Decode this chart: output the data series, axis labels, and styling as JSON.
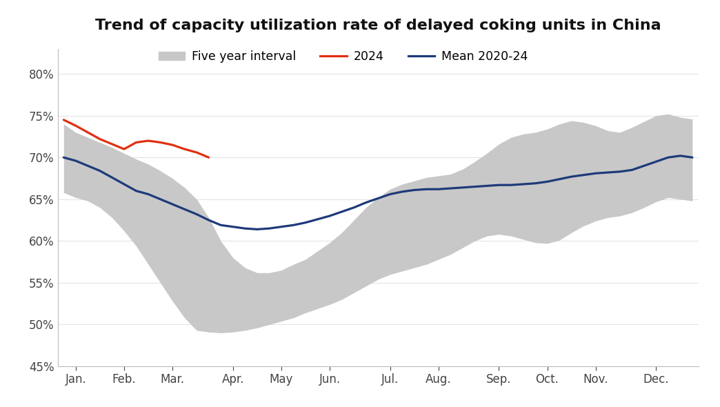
{
  "title": "Trend of capacity utilization rate of delayed coking units in China",
  "title_fontsize": 16,
  "title_fontweight": "bold",
  "background_color": "#ffffff",
  "ylim": [
    0.45,
    0.83
  ],
  "yticks": [
    0.45,
    0.5,
    0.55,
    0.6,
    0.65,
    0.7,
    0.75,
    0.8
  ],
  "ytick_labels": [
    "45%",
    "50%",
    "55%",
    "60%",
    "65%",
    "70%",
    "75%",
    "80%"
  ],
  "x_labels": [
    "Jan.",
    "Feb.",
    "Mar.",
    "Apr.",
    "May",
    "Jun.",
    "Jul.",
    "Aug.",
    "Sep.",
    "Oct.",
    "Nov.",
    "Dec."
  ],
  "n_points": 53,
  "x_tick_positions": [
    1,
    5,
    9,
    14,
    18,
    22,
    27,
    31,
    36,
    40,
    44,
    49
  ],
  "mean_2020_24": [
    0.7,
    0.696,
    0.69,
    0.684,
    0.676,
    0.668,
    0.66,
    0.656,
    0.65,
    0.644,
    0.638,
    0.632,
    0.625,
    0.619,
    0.617,
    0.615,
    0.614,
    0.615,
    0.617,
    0.619,
    0.622,
    0.626,
    0.63,
    0.635,
    0.64,
    0.646,
    0.651,
    0.656,
    0.659,
    0.661,
    0.662,
    0.662,
    0.663,
    0.664,
    0.665,
    0.666,
    0.667,
    0.667,
    0.668,
    0.669,
    0.671,
    0.674,
    0.677,
    0.679,
    0.681,
    0.682,
    0.683,
    0.685,
    0.69,
    0.695,
    0.7,
    0.702,
    0.7
  ],
  "band_upper": [
    0.74,
    0.73,
    0.724,
    0.718,
    0.712,
    0.705,
    0.698,
    0.692,
    0.684,
    0.675,
    0.664,
    0.65,
    0.628,
    0.6,
    0.58,
    0.568,
    0.562,
    0.562,
    0.565,
    0.572,
    0.578,
    0.588,
    0.598,
    0.61,
    0.625,
    0.64,
    0.652,
    0.662,
    0.668,
    0.672,
    0.676,
    0.678,
    0.68,
    0.686,
    0.695,
    0.705,
    0.716,
    0.724,
    0.728,
    0.73,
    0.734,
    0.74,
    0.744,
    0.742,
    0.738,
    0.732,
    0.73,
    0.736,
    0.743,
    0.75,
    0.752,
    0.748,
    0.746
  ],
  "band_lower": [
    0.658,
    0.652,
    0.648,
    0.64,
    0.628,
    0.612,
    0.594,
    0.572,
    0.55,
    0.528,
    0.508,
    0.493,
    0.491,
    0.49,
    0.491,
    0.493,
    0.496,
    0.5,
    0.504,
    0.508,
    0.514,
    0.519,
    0.524,
    0.53,
    0.538,
    0.546,
    0.554,
    0.56,
    0.564,
    0.568,
    0.572,
    0.578,
    0.584,
    0.592,
    0.6,
    0.606,
    0.608,
    0.606,
    0.602,
    0.598,
    0.597,
    0.601,
    0.61,
    0.618,
    0.624,
    0.628,
    0.63,
    0.634,
    0.64,
    0.647,
    0.652,
    0.65,
    0.648
  ],
  "line_2024_x": [
    0,
    1,
    2,
    3,
    4,
    5,
    6,
    7,
    8,
    9,
    10,
    11,
    12
  ],
  "line_2024_y": [
    0.745,
    0.738,
    0.73,
    0.722,
    0.716,
    0.71,
    0.718,
    0.72,
    0.718,
    0.715,
    0.71,
    0.706,
    0.7
  ],
  "line_2024_color": "#e03010",
  "mean_color": "#1e3a7a",
  "band_color": "#c8c8c8",
  "band_alpha": 1.0,
  "mean_linewidth": 2.3,
  "line_2024_linewidth": 2.3,
  "legend_labels": [
    "Five year interval",
    "2024",
    "Mean 2020-24"
  ],
  "legend_fontsize": 12.5
}
